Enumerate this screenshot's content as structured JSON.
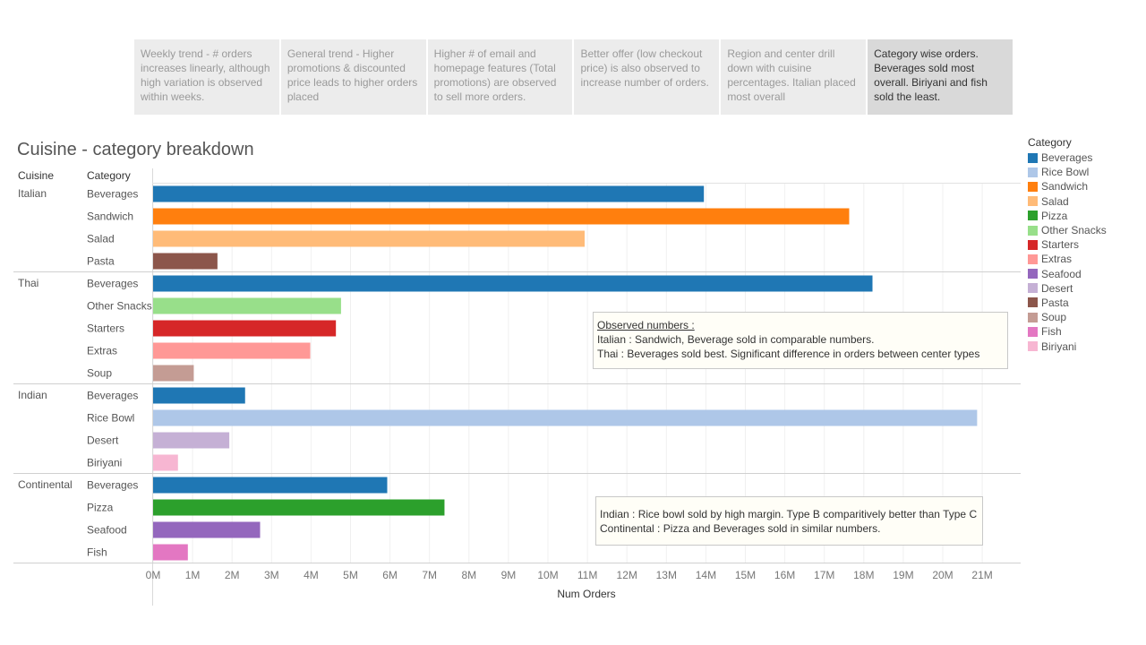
{
  "story_points": [
    {
      "text": "Weekly trend - # orders increases linearly, although high variation is observed within weeks.",
      "active": false
    },
    {
      "text": "General trend - Higher promotions & discounted price leads to higher orders placed",
      "active": false
    },
    {
      "text": "Higher # of email and homepage features (Total promotions) are observed to sell more orders.",
      "active": false
    },
    {
      "text": "Better offer (low checkout price) is also observed to increase number of orders.",
      "active": false
    },
    {
      "text": "Region and center drill down with cuisine percentages. Italian placed most overall",
      "active": false
    },
    {
      "text": "Category wise orders. Beverages sold most overall. Biriyani and fish sold the least.",
      "active": true
    }
  ],
  "chart_title": "Cuisine - category breakdown",
  "headers": {
    "cuisine": "Cuisine",
    "category": "Category"
  },
  "legend": {
    "title": "Category",
    "items": [
      {
        "name": "Beverages",
        "color": "#1f77b4"
      },
      {
        "name": "Rice Bowl",
        "color": "#aec7e8"
      },
      {
        "name": "Sandwich",
        "color": "#ff7f0e"
      },
      {
        "name": "Salad",
        "color": "#ffbb78"
      },
      {
        "name": "Pizza",
        "color": "#2ca02c"
      },
      {
        "name": "Other Snacks",
        "color": "#98df8a"
      },
      {
        "name": "Starters",
        "color": "#d62728"
      },
      {
        "name": "Extras",
        "color": "#ff9896"
      },
      {
        "name": "Seafood",
        "color": "#9467bd"
      },
      {
        "name": "Desert",
        "color": "#c5b0d5"
      },
      {
        "name": "Pasta",
        "color": "#8c564b"
      },
      {
        "name": "Soup",
        "color": "#c49c94"
      },
      {
        "name": "Fish",
        "color": "#e377c2"
      },
      {
        "name": "Biriyani",
        "color": "#f7b6d2"
      }
    ]
  },
  "annotations": [
    {
      "title": "Observed numbers :",
      "lines": [
        "Italian : Sandwich, Beverage sold in comparable numbers.",
        "Thai :  Beverages sold best. Significant difference in orders between center types"
      ]
    },
    {
      "title": "",
      "lines": [
        "Indian : Rice bowl sold by high margin. Type B comparitively better than Type C",
        "Continental : Pizza and Beverages sold in similar numbers."
      ]
    }
  ],
  "chart_data": {
    "type": "bar",
    "orientation": "horizontal",
    "xlabel": "Num Orders",
    "xlim": [
      0,
      21
    ],
    "unit": "M",
    "ticks": [
      0,
      1,
      2,
      3,
      4,
      5,
      6,
      7,
      8,
      9,
      10,
      11,
      12,
      13,
      14,
      15,
      16,
      17,
      18,
      19,
      20,
      21
    ],
    "tick_labels": [
      "0M",
      "1M",
      "2M",
      "3M",
      "4M",
      "5M",
      "6M",
      "7M",
      "8M",
      "9M",
      "10M",
      "11M",
      "12M",
      "13M",
      "14M",
      "15M",
      "16M",
      "17M",
      "18M",
      "19M",
      "20M",
      "21M"
    ],
    "groups": [
      {
        "cuisine": "Italian",
        "bars": [
          {
            "category": "Beverages",
            "value": 13.95
          },
          {
            "category": "Sandwich",
            "value": 17.63
          },
          {
            "category": "Salad",
            "value": 10.93
          },
          {
            "category": "Pasta",
            "value": 1.63
          }
        ]
      },
      {
        "cuisine": "Thai",
        "bars": [
          {
            "category": "Beverages",
            "value": 18.22
          },
          {
            "category": "Other Snacks",
            "value": 4.76
          },
          {
            "category": "Starters",
            "value": 4.63
          },
          {
            "category": "Extras",
            "value": 3.98
          },
          {
            "category": "Soup",
            "value": 1.03
          }
        ]
      },
      {
        "cuisine": "Indian",
        "bars": [
          {
            "category": "Beverages",
            "value": 2.33
          },
          {
            "category": "Rice Bowl",
            "value": 20.87
          },
          {
            "category": "Desert",
            "value": 1.93
          },
          {
            "category": "Biriyani",
            "value": 0.63
          }
        ]
      },
      {
        "cuisine": "Continental",
        "bars": [
          {
            "category": "Beverages",
            "value": 5.93
          },
          {
            "category": "Pizza",
            "value": 7.38
          },
          {
            "category": "Seafood",
            "value": 2.71
          },
          {
            "category": "Fish",
            "value": 0.88
          }
        ]
      }
    ]
  }
}
